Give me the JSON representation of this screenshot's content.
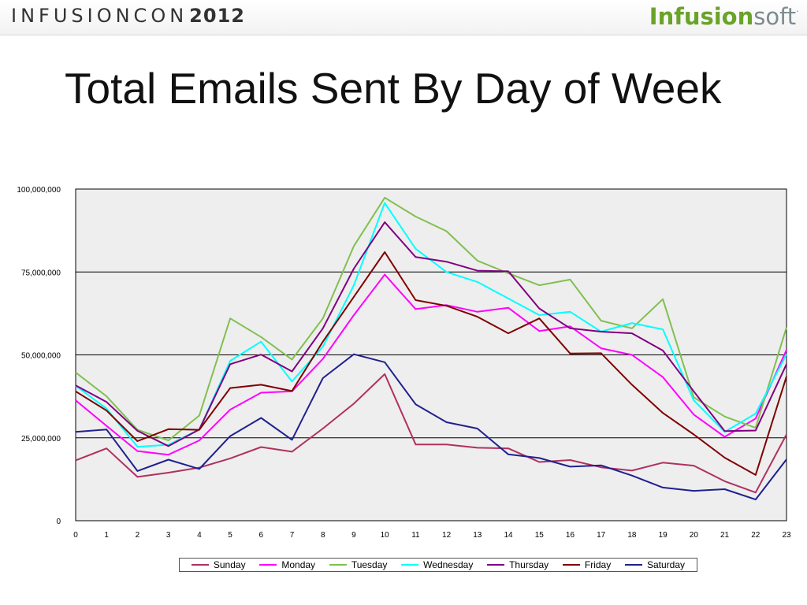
{
  "header": {
    "event_name": "INFUSIONCON",
    "event_year": "2012",
    "brand_primary": "Infusion",
    "brand_secondary": "soft",
    "brand_dot": ".",
    "brand_color": "#6aa329",
    "brand_secondary_color": "#7d8a8e"
  },
  "slide": {
    "title": "Total Emails Sent By Day of Week"
  },
  "chart_data": {
    "type": "line",
    "title": "",
    "xlabel": "",
    "ylabel": "",
    "x": [
      0,
      1,
      2,
      3,
      4,
      5,
      6,
      7,
      8,
      9,
      10,
      11,
      12,
      13,
      14,
      15,
      16,
      17,
      18,
      19,
      20,
      21,
      22,
      23
    ],
    "xlim": [
      0,
      23
    ],
    "ylim": [
      0,
      100000000
    ],
    "y_ticks": [
      0,
      25000000,
      50000000,
      75000000,
      100000000
    ],
    "y_tick_labels": [
      "0",
      "25,000,000",
      "50,000,000",
      "75,000,000",
      "100,000,000"
    ],
    "grid": true,
    "legend_position": "bottom",
    "plot_background": "#eeeeee",
    "series": [
      {
        "name": "Sunday",
        "color": "#b03060",
        "values": [
          18200000,
          21800000,
          13200000,
          14500000,
          16000000,
          18800000,
          22200000,
          20800000,
          27800000,
          35300000,
          44200000,
          23000000,
          23000000,
          22000000,
          21800000,
          17700000,
          18300000,
          16100000,
          15100000,
          17500000,
          16600000,
          11900000,
          8500000,
          26000000
        ]
      },
      {
        "name": "Monday",
        "color": "#ff00ff",
        "values": [
          36300000,
          28600000,
          21000000,
          19900000,
          24200000,
          33500000,
          38600000,
          39000000,
          48800000,
          62000000,
          74200000,
          63800000,
          65000000,
          63000000,
          64200000,
          57200000,
          58600000,
          52000000,
          50000000,
          43300000,
          32000000,
          25300000,
          30800000,
          51500000
        ]
      },
      {
        "name": "Tuesday",
        "color": "#80c050",
        "values": [
          44700000,
          37500000,
          27400000,
          24200000,
          31700000,
          61000000,
          55400000,
          48600000,
          61000000,
          82800000,
          97400000,
          91700000,
          87300000,
          78400000,
          74600000,
          71000000,
          72700000,
          60300000,
          58000000,
          66800000,
          37200000,
          31400000,
          28000000,
          58300000
        ]
      },
      {
        "name": "Wednesday",
        "color": "#00ffff",
        "values": [
          40700000,
          33800000,
          22300000,
          22900000,
          27500000,
          48200000,
          54000000,
          42000000,
          52500000,
          71000000,
          95800000,
          82000000,
          75000000,
          72000000,
          67000000,
          62000000,
          63000000,
          57000000,
          59600000,
          57700000,
          36300000,
          26800000,
          32300000,
          50200000
        ]
      },
      {
        "name": "Thursday",
        "color": "#800080",
        "values": [
          40800000,
          35800000,
          27100000,
          22500000,
          27500000,
          47200000,
          50100000,
          45000000,
          58000000,
          76000000,
          90000000,
          79500000,
          78100000,
          75400000,
          75200000,
          64000000,
          58000000,
          57000000,
          56500000,
          51300000,
          39000000,
          27000000,
          27200000,
          47200000
        ]
      },
      {
        "name": "Friday",
        "color": "#800000",
        "values": [
          39000000,
          33200000,
          24000000,
          27600000,
          27400000,
          40000000,
          41000000,
          39100000,
          54000000,
          67500000,
          81000000,
          66500000,
          64800000,
          61500000,
          56500000,
          61000000,
          50400000,
          50500000,
          41000000,
          32500000,
          26000000,
          19000000,
          13800000,
          43500000
        ]
      },
      {
        "name": "Saturday",
        "color": "#202090",
        "values": [
          26800000,
          27500000,
          15000000,
          18400000,
          15600000,
          25500000,
          31000000,
          24400000,
          43000000,
          50200000,
          47800000,
          35100000,
          29700000,
          27800000,
          20000000,
          18900000,
          16300000,
          16700000,
          13600000,
          10000000,
          9000000,
          9500000,
          6400000,
          18500000
        ]
      }
    ]
  }
}
